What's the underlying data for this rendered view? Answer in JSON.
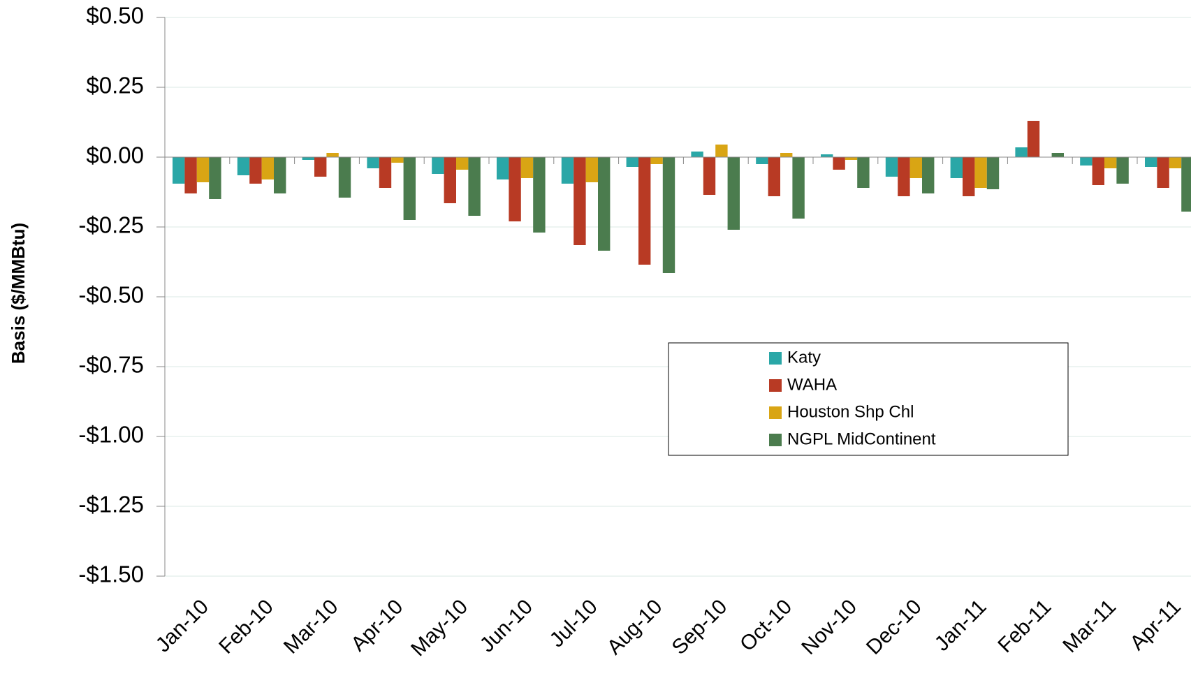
{
  "chart_data": {
    "type": "bar",
    "y_label": "Basis ($/MMBtu)",
    "categories": [
      "Jan-10",
      "Feb-10",
      "Mar-10",
      "Apr-10",
      "May-10",
      "Jun-10",
      "Jul-10",
      "Aug-10",
      "Sep-10",
      "Oct-10",
      "Nov-10",
      "Dec-10",
      "Jan-11",
      "Feb-11",
      "Mar-11",
      "Apr-11"
    ],
    "series": [
      {
        "name": "Katy",
        "color": "#2aa7a7",
        "values": [
          -0.095,
          -0.065,
          -0.01,
          -0.04,
          -0.06,
          -0.08,
          -0.095,
          -0.035,
          0.02,
          -0.025,
          0.01,
          -0.07,
          -0.075,
          0.035,
          -0.03,
          -0.035
        ]
      },
      {
        "name": "WAHA",
        "color": "#b83a24",
        "values": [
          -0.13,
          -0.095,
          -0.07,
          -0.11,
          -0.165,
          -0.23,
          -0.315,
          -0.385,
          -0.135,
          -0.14,
          -0.045,
          -0.14,
          -0.14,
          0.13,
          -0.1,
          -0.11
        ]
      },
      {
        "name": "Houston Shp Chl",
        "color": "#d9a514",
        "values": [
          -0.09,
          -0.08,
          0.015,
          -0.02,
          -0.045,
          -0.075,
          -0.09,
          -0.025,
          0.045,
          0.015,
          -0.01,
          -0.075,
          -0.11,
          0,
          -0.04,
          -0.04
        ]
      },
      {
        "name": "NGPL MidContinent",
        "color": "#4b7c4e",
        "values": [
          -0.15,
          -0.13,
          -0.145,
          -0.225,
          -0.21,
          -0.27,
          -0.335,
          -0.415,
          -0.26,
          -0.22,
          -0.11,
          -0.13,
          -0.115,
          0.015,
          -0.095,
          -0.195
        ]
      }
    ],
    "ylim": [
      -1.5,
      0.5
    ],
    "yticks": [
      {
        "value": 0.5,
        "label": "$0.50"
      },
      {
        "value": 0.25,
        "label": "$0.25"
      },
      {
        "value": 0,
        "label": "$0.00"
      },
      {
        "value": -0.25,
        "label": "-$0.25"
      },
      {
        "value": -0.5,
        "label": "-$0.50"
      },
      {
        "value": -0.75,
        "label": "-$0.75"
      },
      {
        "value": -1,
        "label": "-$1.00"
      },
      {
        "value": -1.25,
        "label": "-$1.25"
      },
      {
        "value": -1.5,
        "label": "-$1.50"
      }
    ],
    "grid": true
  }
}
